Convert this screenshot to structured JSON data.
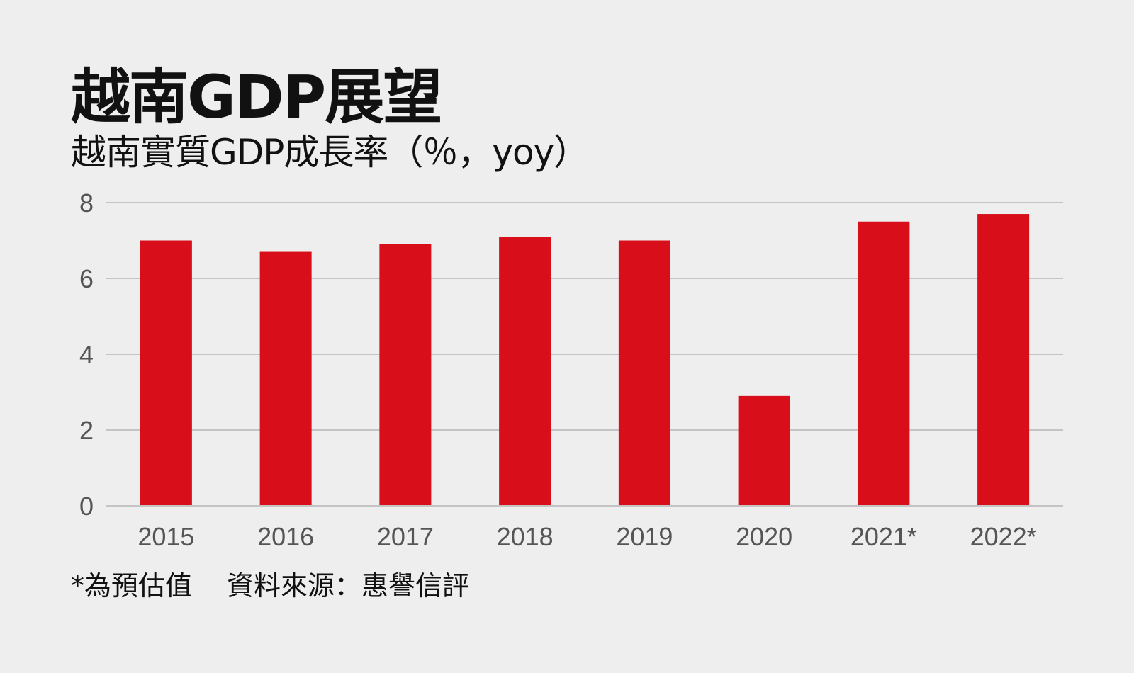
{
  "chart_data": {
    "type": "bar",
    "title": "越南GDP展望",
    "subtitle": "越南實質GDP成長率（％，yoy）",
    "categories": [
      "2015",
      "2016",
      "2017",
      "2018",
      "2019",
      "2020",
      "2021*",
      "2022*"
    ],
    "values": [
      7.0,
      6.7,
      6.9,
      7.1,
      7.0,
      2.9,
      7.5,
      7.7
    ],
    "xlabel": "",
    "ylabel": "",
    "ylim": [
      0,
      8
    ],
    "yticks": [
      0,
      2,
      4,
      6,
      8
    ],
    "grid": true,
    "bar_color": "#d80f1a",
    "grid_color": "#b5b5b5",
    "background": "#eeeeee"
  },
  "footnote": "*為預估值",
  "source": "資料來源：惠譽信評"
}
